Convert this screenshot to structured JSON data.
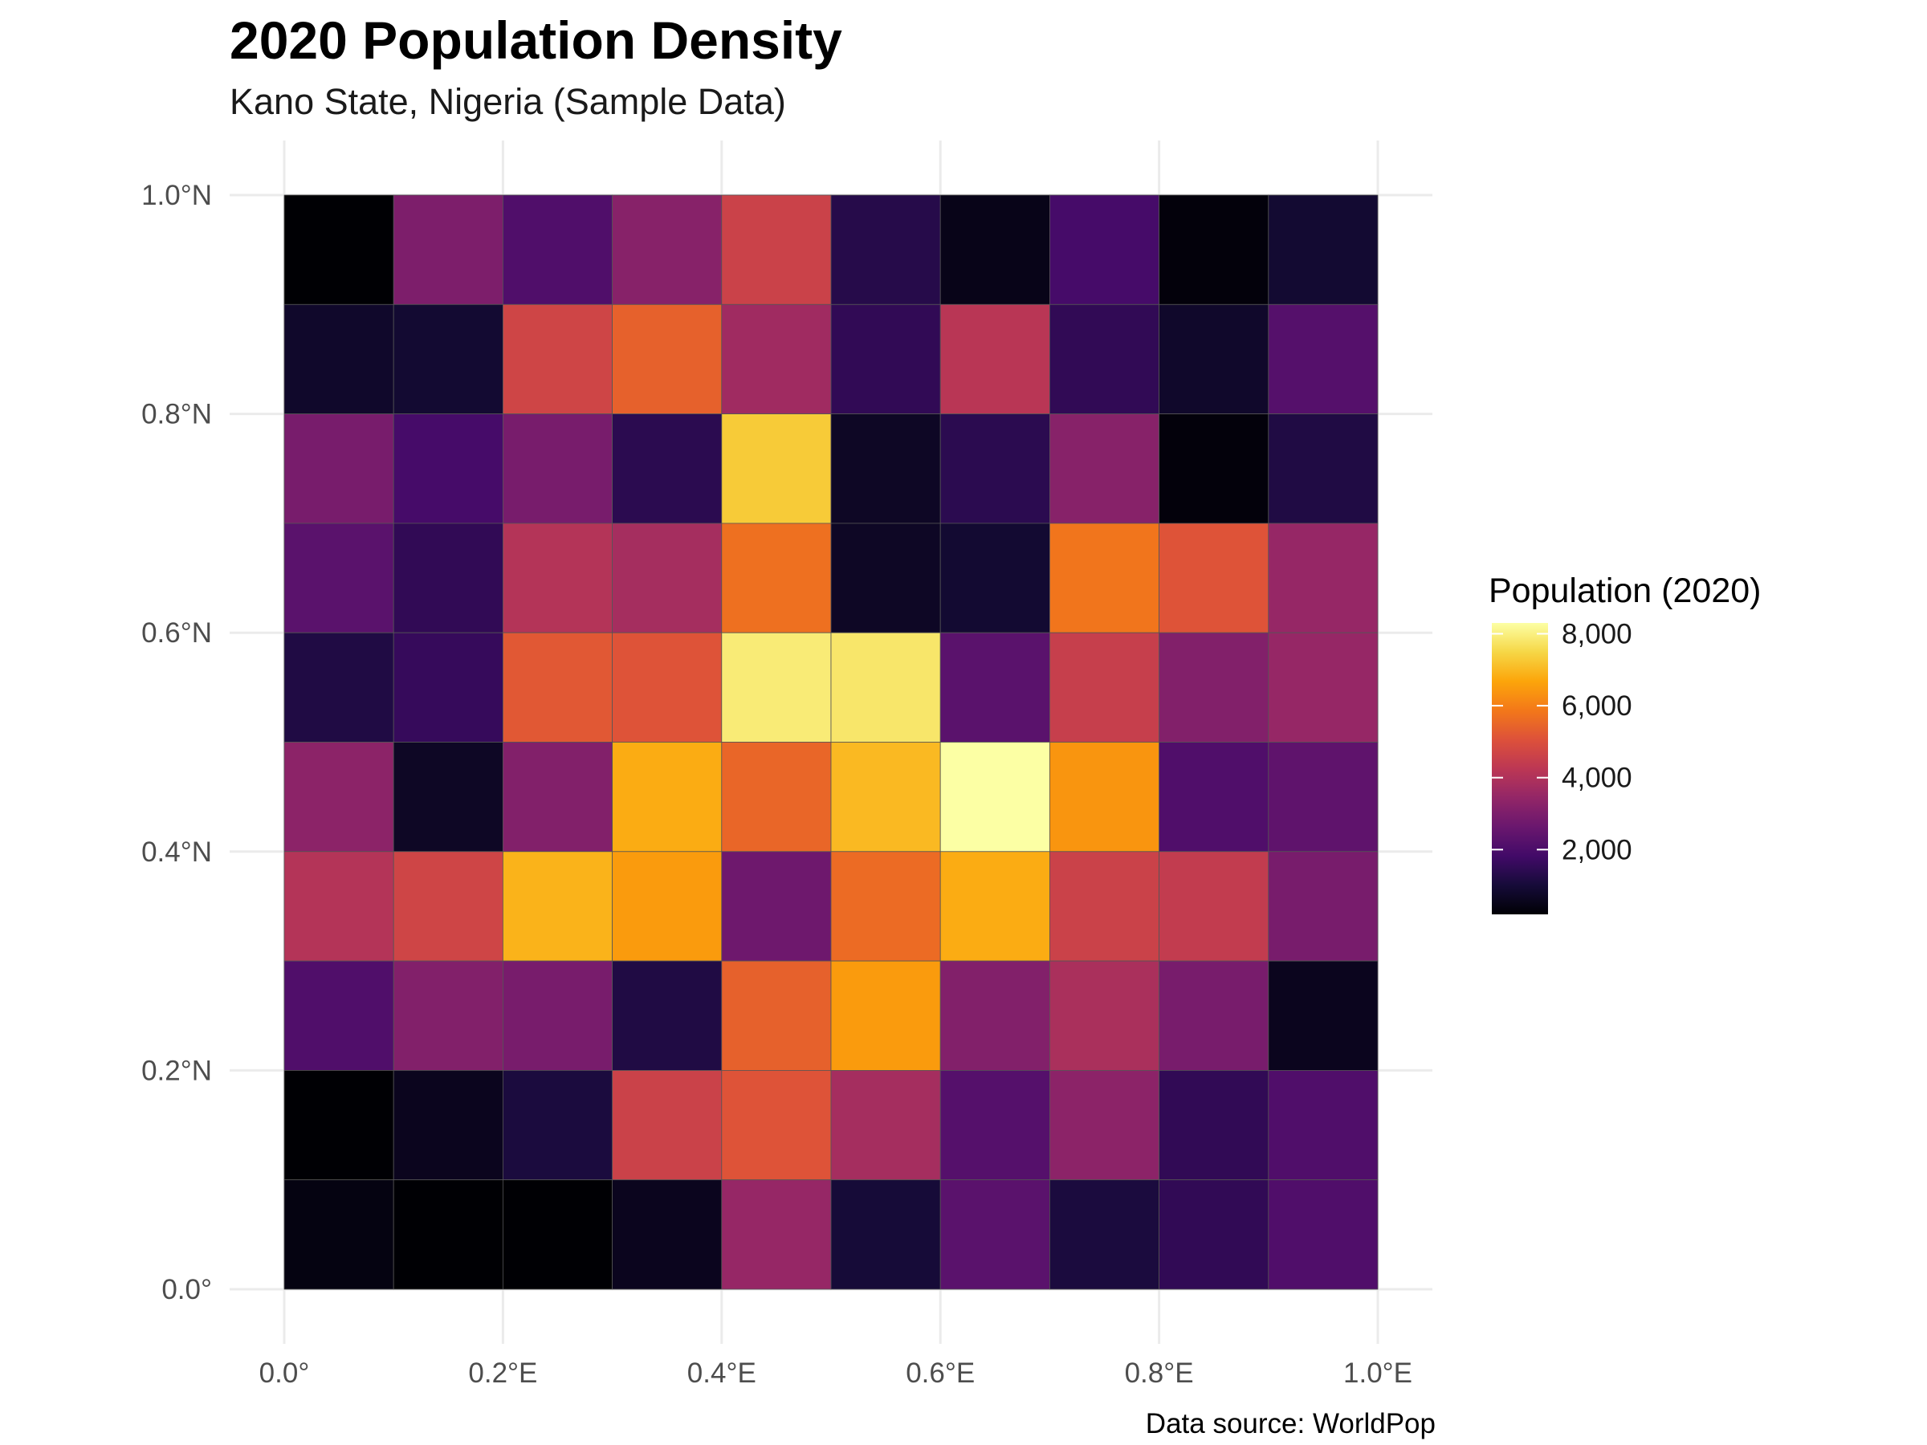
{
  "chart_data": {
    "type": "heatmap",
    "title": "2020 Population Density",
    "subtitle": "Kano State, Nigeria (Sample Data)",
    "caption": "Data source: WorldPop",
    "legend": {
      "title": "Population (2020)",
      "position": "right",
      "ticks": [
        "2,000",
        "4,000",
        "6,000",
        "8,000"
      ],
      "tick_values": [
        2000,
        4000,
        6000,
        8000
      ],
      "range": [
        200,
        8300
      ]
    },
    "xlim": [
      0,
      1
    ],
    "ylim": [
      0,
      1
    ],
    "grid": true,
    "x_ticks": [
      {
        "value": 0.0,
        "label": "0.0°"
      },
      {
        "value": 0.2,
        "label": "0.2°E"
      },
      {
        "value": 0.4,
        "label": "0.4°E"
      },
      {
        "value": 0.6,
        "label": "0.6°E"
      },
      {
        "value": 0.8,
        "label": "0.8°E"
      },
      {
        "value": 1.0,
        "label": "1.0°E"
      }
    ],
    "y_ticks": [
      {
        "value": 0.0,
        "label": "0.0°"
      },
      {
        "value": 0.2,
        "label": "0.2°N"
      },
      {
        "value": 0.4,
        "label": "0.4°N"
      },
      {
        "value": 0.6,
        "label": "0.6°N"
      },
      {
        "value": 0.8,
        "label": "0.8°N"
      },
      {
        "value": 1.0,
        "label": "1.0°N"
      }
    ],
    "cell_size": 0.1,
    "x_centers": [
      0.05,
      0.15,
      0.25,
      0.35,
      0.45,
      0.55,
      0.65,
      0.75,
      0.85,
      0.95
    ],
    "y_centers": [
      0.95,
      0.85,
      0.75,
      0.65,
      0.55,
      0.45,
      0.35,
      0.25,
      0.15,
      0.05
    ],
    "values": [
      [
        200,
        3000,
        2100,
        3200,
        4600,
        1300,
        500,
        1900,
        300,
        900
      ],
      [
        800,
        900,
        4700,
        5400,
        3700,
        1500,
        4200,
        1500,
        800,
        2200
      ],
      [
        2900,
        1900,
        2900,
        1400,
        7300,
        700,
        1400,
        3200,
        300,
        1200
      ],
      [
        2300,
        1500,
        4100,
        3800,
        5700,
        700,
        900,
        5800,
        5100,
        3500
      ],
      [
        1200,
        1600,
        5200,
        5100,
        7900,
        7800,
        2300,
        4500,
        3100,
        3500
      ],
      [
        3300,
        700,
        3100,
        6800,
        5500,
        7000,
        8300,
        6400,
        2100,
        2400
      ],
      [
        4100,
        4700,
        6900,
        6500,
        2700,
        5600,
        6800,
        4600,
        4400,
        2900
      ],
      [
        2100,
        3100,
        2900,
        1200,
        5400,
        6500,
        3100,
        3900,
        2900,
        600
      ],
      [
        200,
        600,
        1100,
        4600,
        5100,
        3800,
        2200,
        3300,
        1500,
        2100
      ],
      [
        400,
        200,
        200,
        600,
        3500,
        1000,
        2300,
        1100,
        1500,
        2100
      ]
    ]
  }
}
